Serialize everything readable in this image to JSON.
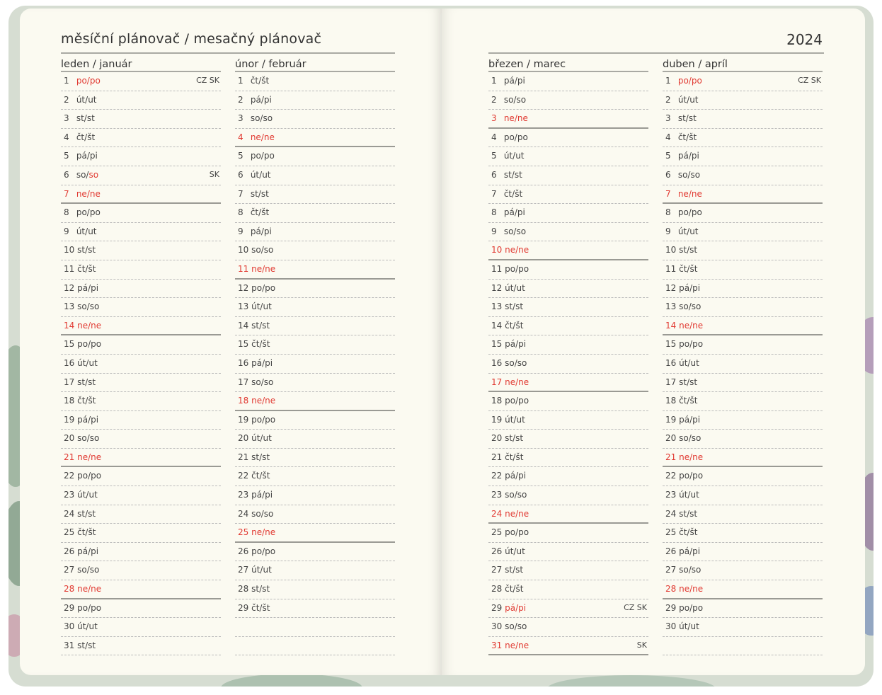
{
  "header": {
    "title": "měsíční plánovač / mesačný plánovač",
    "year": "2024"
  },
  "months": [
    {
      "name": "leden / január",
      "days": [
        {
          "n": "1",
          "a": "po",
          "b": "po",
          "red_a": true,
          "red_b": true,
          "hol": "CZ SK"
        },
        {
          "n": "2",
          "a": "út",
          "b": "ut"
        },
        {
          "n": "3",
          "a": "st",
          "b": "st"
        },
        {
          "n": "4",
          "a": "čt",
          "b": "št"
        },
        {
          "n": "5",
          "a": "pá",
          "b": "pi"
        },
        {
          "n": "6",
          "a": "so",
          "b": "so",
          "red_b": true,
          "hol": "SK"
        },
        {
          "n": "7",
          "a": "ne",
          "b": "ne",
          "red_n": true,
          "red_a": true,
          "red_b": true,
          "end": true
        },
        {
          "n": "8",
          "a": "po",
          "b": "po"
        },
        {
          "n": "9",
          "a": "út",
          "b": "ut"
        },
        {
          "n": "10",
          "a": "st",
          "b": "st"
        },
        {
          "n": "11",
          "a": "čt",
          "b": "št"
        },
        {
          "n": "12",
          "a": "pá",
          "b": "pi"
        },
        {
          "n": "13",
          "a": "so",
          "b": "so"
        },
        {
          "n": "14",
          "a": "ne",
          "b": "ne",
          "red_n": true,
          "red_a": true,
          "red_b": true,
          "end": true
        },
        {
          "n": "15",
          "a": "po",
          "b": "po"
        },
        {
          "n": "16",
          "a": "út",
          "b": "ut"
        },
        {
          "n": "17",
          "a": "st",
          "b": "st"
        },
        {
          "n": "18",
          "a": "čt",
          "b": "št"
        },
        {
          "n": "19",
          "a": "pá",
          "b": "pi"
        },
        {
          "n": "20",
          "a": "so",
          "b": "so"
        },
        {
          "n": "21",
          "a": "ne",
          "b": "ne",
          "red_n": true,
          "red_a": true,
          "red_b": true,
          "end": true
        },
        {
          "n": "22",
          "a": "po",
          "b": "po"
        },
        {
          "n": "23",
          "a": "út",
          "b": "ut"
        },
        {
          "n": "24",
          "a": "st",
          "b": "st"
        },
        {
          "n": "25",
          "a": "čt",
          "b": "št"
        },
        {
          "n": "26",
          "a": "pá",
          "b": "pi"
        },
        {
          "n": "27",
          "a": "so",
          "b": "so"
        },
        {
          "n": "28",
          "a": "ne",
          "b": "ne",
          "red_n": true,
          "red_a": true,
          "red_b": true,
          "end": true
        },
        {
          "n": "29",
          "a": "po",
          "b": "po"
        },
        {
          "n": "30",
          "a": "út",
          "b": "ut"
        },
        {
          "n": "31",
          "a": "st",
          "b": "st"
        }
      ]
    },
    {
      "name": "únor / február",
      "days": [
        {
          "n": "1",
          "a": "čt",
          "b": "št"
        },
        {
          "n": "2",
          "a": "pá",
          "b": "pi"
        },
        {
          "n": "3",
          "a": "so",
          "b": "so"
        },
        {
          "n": "4",
          "a": "ne",
          "b": "ne",
          "red_n": true,
          "red_a": true,
          "red_b": true,
          "end": true
        },
        {
          "n": "5",
          "a": "po",
          "b": "po"
        },
        {
          "n": "6",
          "a": "út",
          "b": "ut"
        },
        {
          "n": "7",
          "a": "st",
          "b": "st"
        },
        {
          "n": "8",
          "a": "čt",
          "b": "št"
        },
        {
          "n": "9",
          "a": "pá",
          "b": "pi"
        },
        {
          "n": "10",
          "a": "so",
          "b": "so"
        },
        {
          "n": "11",
          "a": "ne",
          "b": "ne",
          "red_n": true,
          "red_a": true,
          "red_b": true,
          "end": true
        },
        {
          "n": "12",
          "a": "po",
          "b": "po"
        },
        {
          "n": "13",
          "a": "út",
          "b": "ut"
        },
        {
          "n": "14",
          "a": "st",
          "b": "st"
        },
        {
          "n": "15",
          "a": "čt",
          "b": "št"
        },
        {
          "n": "16",
          "a": "pá",
          "b": "pi"
        },
        {
          "n": "17",
          "a": "so",
          "b": "so"
        },
        {
          "n": "18",
          "a": "ne",
          "b": "ne",
          "red_n": true,
          "red_a": true,
          "red_b": true,
          "end": true
        },
        {
          "n": "19",
          "a": "po",
          "b": "po"
        },
        {
          "n": "20",
          "a": "út",
          "b": "ut"
        },
        {
          "n": "21",
          "a": "st",
          "b": "st"
        },
        {
          "n": "22",
          "a": "čt",
          "b": "št"
        },
        {
          "n": "23",
          "a": "pá",
          "b": "pi"
        },
        {
          "n": "24",
          "a": "so",
          "b": "so"
        },
        {
          "n": "25",
          "a": "ne",
          "b": "ne",
          "red_n": true,
          "red_a": true,
          "red_b": true,
          "end": true
        },
        {
          "n": "26",
          "a": "po",
          "b": "po"
        },
        {
          "n": "27",
          "a": "út",
          "b": "ut"
        },
        {
          "n": "28",
          "a": "st",
          "b": "st"
        },
        {
          "n": "29",
          "a": "čt",
          "b": "št"
        }
      ]
    },
    {
      "name": "březen / marec",
      "days": [
        {
          "n": "1",
          "a": "pá",
          "b": "pi"
        },
        {
          "n": "2",
          "a": "so",
          "b": "so"
        },
        {
          "n": "3",
          "a": "ne",
          "b": "ne",
          "red_n": true,
          "red_a": true,
          "red_b": true,
          "end": true
        },
        {
          "n": "4",
          "a": "po",
          "b": "po"
        },
        {
          "n": "5",
          "a": "út",
          "b": "ut"
        },
        {
          "n": "6",
          "a": "st",
          "b": "st"
        },
        {
          "n": "7",
          "a": "čt",
          "b": "št"
        },
        {
          "n": "8",
          "a": "pá",
          "b": "pi"
        },
        {
          "n": "9",
          "a": "so",
          "b": "so"
        },
        {
          "n": "10",
          "a": "ne",
          "b": "ne",
          "red_n": true,
          "red_a": true,
          "red_b": true,
          "end": true
        },
        {
          "n": "11",
          "a": "po",
          "b": "po"
        },
        {
          "n": "12",
          "a": "út",
          "b": "ut"
        },
        {
          "n": "13",
          "a": "st",
          "b": "st"
        },
        {
          "n": "14",
          "a": "čt",
          "b": "št"
        },
        {
          "n": "15",
          "a": "pá",
          "b": "pi"
        },
        {
          "n": "16",
          "a": "so",
          "b": "so"
        },
        {
          "n": "17",
          "a": "ne",
          "b": "ne",
          "red_n": true,
          "red_a": true,
          "red_b": true,
          "end": true
        },
        {
          "n": "18",
          "a": "po",
          "b": "po"
        },
        {
          "n": "19",
          "a": "út",
          "b": "ut"
        },
        {
          "n": "20",
          "a": "st",
          "b": "st"
        },
        {
          "n": "21",
          "a": "čt",
          "b": "št"
        },
        {
          "n": "22",
          "a": "pá",
          "b": "pi"
        },
        {
          "n": "23",
          "a": "so",
          "b": "so"
        },
        {
          "n": "24",
          "a": "ne",
          "b": "ne",
          "red_n": true,
          "red_a": true,
          "red_b": true,
          "end": true
        },
        {
          "n": "25",
          "a": "po",
          "b": "po"
        },
        {
          "n": "26",
          "a": "út",
          "b": "ut"
        },
        {
          "n": "27",
          "a": "st",
          "b": "st"
        },
        {
          "n": "28",
          "a": "čt",
          "b": "št"
        },
        {
          "n": "29",
          "a": "pá",
          "b": "pi",
          "red_a": true,
          "red_b": true,
          "hol": "CZ SK"
        },
        {
          "n": "30",
          "a": "so",
          "b": "so"
        },
        {
          "n": "31",
          "a": "ne",
          "b": "ne",
          "red_n": true,
          "red_a": true,
          "red_b": true,
          "hol": "SK",
          "end": true
        }
      ]
    },
    {
      "name": "duben / apríl",
      "days": [
        {
          "n": "1",
          "a": "po",
          "b": "po",
          "red_a": true,
          "red_b": true,
          "hol": "CZ SK"
        },
        {
          "n": "2",
          "a": "út",
          "b": "ut"
        },
        {
          "n": "3",
          "a": "st",
          "b": "st"
        },
        {
          "n": "4",
          "a": "čt",
          "b": "št"
        },
        {
          "n": "5",
          "a": "pá",
          "b": "pi"
        },
        {
          "n": "6",
          "a": "so",
          "b": "so"
        },
        {
          "n": "7",
          "a": "ne",
          "b": "ne",
          "red_n": true,
          "red_a": true,
          "red_b": true,
          "end": true
        },
        {
          "n": "8",
          "a": "po",
          "b": "po"
        },
        {
          "n": "9",
          "a": "út",
          "b": "ut"
        },
        {
          "n": "10",
          "a": "st",
          "b": "st"
        },
        {
          "n": "11",
          "a": "čt",
          "b": "št"
        },
        {
          "n": "12",
          "a": "pá",
          "b": "pi"
        },
        {
          "n": "13",
          "a": "so",
          "b": "so"
        },
        {
          "n": "14",
          "a": "ne",
          "b": "ne",
          "red_n": true,
          "red_a": true,
          "red_b": true,
          "end": true
        },
        {
          "n": "15",
          "a": "po",
          "b": "po"
        },
        {
          "n": "16",
          "a": "út",
          "b": "ut"
        },
        {
          "n": "17",
          "a": "st",
          "b": "st"
        },
        {
          "n": "18",
          "a": "čt",
          "b": "št"
        },
        {
          "n": "19",
          "a": "pá",
          "b": "pi"
        },
        {
          "n": "20",
          "a": "so",
          "b": "so"
        },
        {
          "n": "21",
          "a": "ne",
          "b": "ne",
          "red_n": true,
          "red_a": true,
          "red_b": true,
          "end": true
        },
        {
          "n": "22",
          "a": "po",
          "b": "po"
        },
        {
          "n": "23",
          "a": "út",
          "b": "ut"
        },
        {
          "n": "24",
          "a": "st",
          "b": "st"
        },
        {
          "n": "25",
          "a": "čt",
          "b": "št"
        },
        {
          "n": "26",
          "a": "pá",
          "b": "pi"
        },
        {
          "n": "27",
          "a": "so",
          "b": "so"
        },
        {
          "n": "28",
          "a": "ne",
          "b": "ne",
          "red_n": true,
          "red_a": true,
          "red_b": true,
          "end": true
        },
        {
          "n": "29",
          "a": "po",
          "b": "po"
        },
        {
          "n": "30",
          "a": "út",
          "b": "ut"
        }
      ]
    }
  ],
  "colors": {
    "holiday_red": "#e13a32",
    "paper": "#fbfaf1",
    "rule": "#a9a9a3"
  }
}
